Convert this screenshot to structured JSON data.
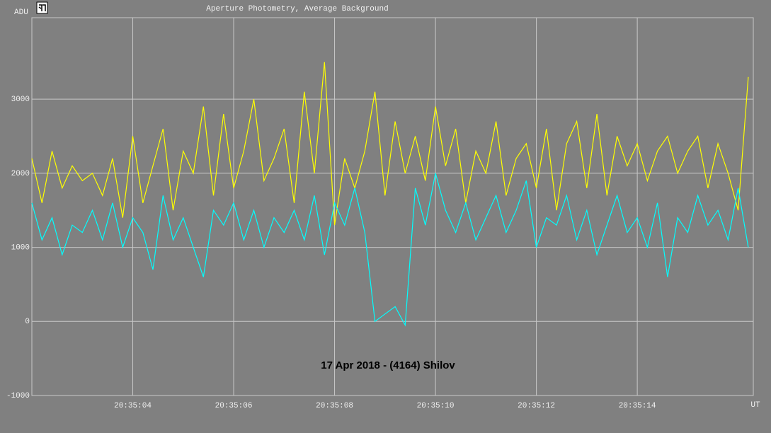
{
  "chart_data": {
    "type": "line",
    "title": "Aperture Photometry, Average Background",
    "ylabel": "ADU",
    "xlabel": "UT",
    "annotation": "17 Apr 2018 - (4164) Shilov",
    "xlim": [
      2,
      16.3
    ],
    "ylim": [
      -1000,
      4100
    ],
    "yticks": [
      -1000,
      0,
      1000,
      2000,
      3000
    ],
    "xticks": [
      {
        "value": 4,
        "label": "20:35:04"
      },
      {
        "value": 6,
        "label": "20:35:06"
      },
      {
        "value": 8,
        "label": "20:35:08"
      },
      {
        "value": 10,
        "label": "20:35:10"
      },
      {
        "value": 12,
        "label": "20:35:12"
      },
      {
        "value": 14,
        "label": "20:35:14"
      }
    ],
    "grid": true,
    "x": [
      2.0,
      2.2,
      2.4,
      2.6,
      2.8,
      3.0,
      3.2,
      3.4,
      3.6,
      3.8,
      4.0,
      4.2,
      4.4,
      4.6,
      4.8,
      5.0,
      5.2,
      5.4,
      5.6,
      5.8,
      6.0,
      6.2,
      6.4,
      6.6,
      6.8,
      7.0,
      7.2,
      7.4,
      7.6,
      7.8,
      8.0,
      8.2,
      8.4,
      8.6,
      8.8,
      9.0,
      9.2,
      9.4,
      9.6,
      9.8,
      10.0,
      10.2,
      10.4,
      10.6,
      10.8,
      11.0,
      11.2,
      11.4,
      11.6,
      11.8,
      12.0,
      12.2,
      12.4,
      12.6,
      12.8,
      13.0,
      13.2,
      13.4,
      13.6,
      13.8,
      14.0,
      14.2,
      14.4,
      14.6,
      14.8,
      15.0,
      15.2,
      15.4,
      15.6,
      15.8,
      16.0,
      16.2
    ],
    "series": [
      {
        "color": "#ffff00",
        "values": [
          2200,
          1600,
          2300,
          1800,
          2100,
          1900,
          2000,
          1700,
          2200,
          1400,
          2500,
          1600,
          2100,
          2600,
          1500,
          2300,
          2000,
          2900,
          1700,
          2800,
          1800,
          2300,
          3000,
          1900,
          2200,
          2600,
          1600,
          3100,
          2000,
          3500,
          1300,
          2200,
          1800,
          2300,
          3100,
          1700,
          2700,
          2000,
          2500,
          1900,
          2900,
          2100,
          2600,
          1600,
          2300,
          2000,
          2700,
          1700,
          2200,
          2400,
          1800,
          2600,
          1500,
          2400,
          2700,
          1800,
          2800,
          1700,
          2500,
          2100,
          2400,
          1900,
          2300,
          2500,
          2000,
          2300,
          2500,
          1800,
          2400,
          2000,
          1500,
          3300
        ]
      },
      {
        "color": "#00ffff",
        "values": [
          1600,
          1100,
          1400,
          900,
          1300,
          1200,
          1500,
          1100,
          1600,
          1000,
          1400,
          1200,
          700,
          1700,
          1100,
          1400,
          1000,
          600,
          1500,
          1300,
          1600,
          1100,
          1500,
          1000,
          1400,
          1200,
          1500,
          1100,
          1700,
          900,
          1600,
          1300,
          1800,
          1200,
          0,
          100,
          200,
          -50,
          1800,
          1300,
          2000,
          1500,
          1200,
          1600,
          1100,
          1400,
          1700,
          1200,
          1500,
          1900,
          1000,
          1400,
          1300,
          1700,
          1100,
          1500,
          900,
          1300,
          1700,
          1200,
          1400,
          1000,
          1600,
          600,
          1400,
          1200,
          1700,
          1300,
          1500,
          1100,
          1800,
          1000
        ]
      }
    ]
  }
}
